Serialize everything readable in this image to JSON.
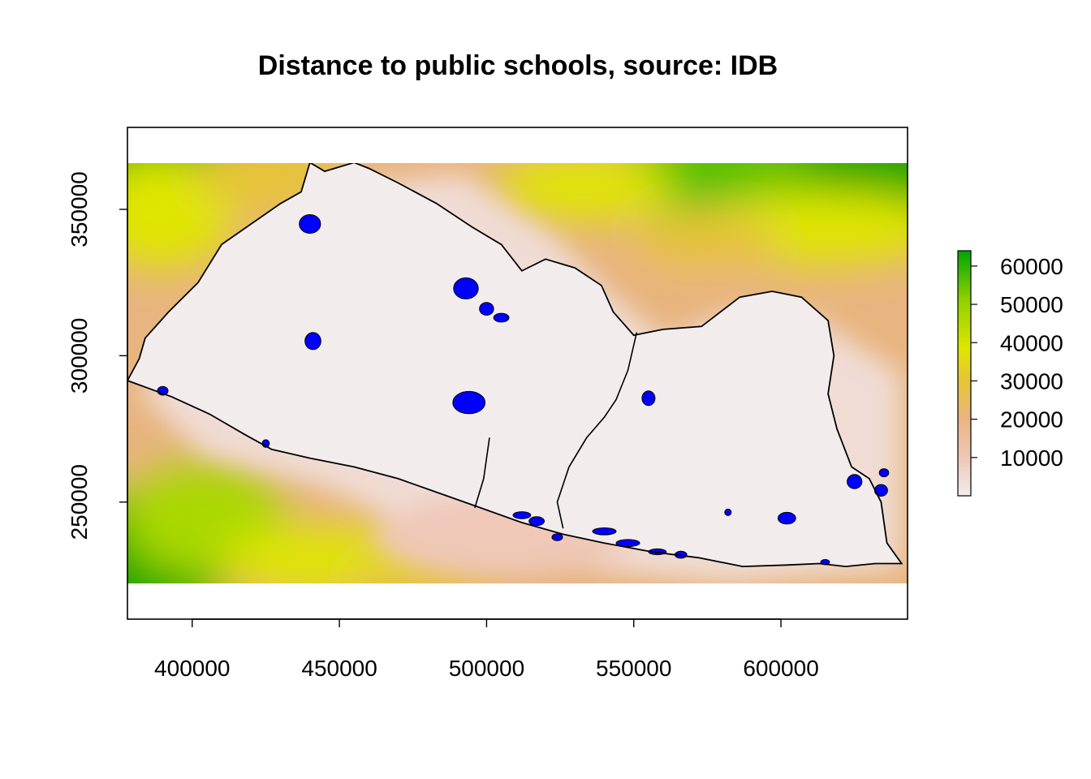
{
  "title": "Distance to public schools, source: IDB",
  "colors": {
    "scale": [
      "#f2ecec",
      "#f0dcd4",
      "#efc8b8",
      "#e8b47f",
      "#e6c436",
      "#dfe600",
      "#a9d800",
      "#50c000",
      "#00a600"
    ],
    "water": "#0000ff",
    "border": "#000000",
    "background": "#ffffff"
  },
  "chart_data": {
    "type": "heatmap",
    "title": "Distance to public schools, source: IDB",
    "xlabel": "",
    "ylabel": "",
    "xlim": [
      378000,
      643000
    ],
    "ylim": [
      210000,
      378000
    ],
    "raster_extent": {
      "x": [
        378000,
        643000
      ],
      "y": [
        226000,
        369000
      ]
    },
    "x_ticks": [
      400000,
      450000,
      500000,
      550000,
      600000
    ],
    "x_tick_labels": [
      "400000",
      "450000",
      "500000",
      "550000",
      "600000"
    ],
    "y_ticks": [
      250000,
      300000,
      350000
    ],
    "y_tick_labels": [
      "250000",
      "300000",
      "350000"
    ],
    "legend": {
      "position": "right",
      "min": 0,
      "max": 64000,
      "ticks": [
        10000,
        20000,
        30000,
        40000,
        50000,
        60000
      ],
      "tick_labels": [
        "10000",
        "20000",
        "30000",
        "40000",
        "50000",
        "60000"
      ]
    },
    "legend_position": "right",
    "grid": false,
    "country_outline": [
      [
        378000,
        291500
      ],
      [
        393000,
        286000
      ],
      [
        406000,
        280000
      ],
      [
        418000,
        273000
      ],
      [
        427000,
        268000
      ],
      [
        440000,
        265000
      ],
      [
        455000,
        262000
      ],
      [
        470000,
        258000
      ],
      [
        484000,
        253000
      ],
      [
        498000,
        248000
      ],
      [
        512000,
        243000
      ],
      [
        526000,
        239000
      ],
      [
        540000,
        236000
      ],
      [
        556000,
        233000
      ],
      [
        572000,
        231000
      ],
      [
        587000,
        228000
      ],
      [
        602000,
        228500
      ],
      [
        613000,
        229000
      ],
      [
        622000,
        228000
      ],
      [
        632000,
        229000
      ],
      [
        641000,
        229000
      ],
      [
        636000,
        236000
      ],
      [
        634000,
        250000
      ],
      [
        630000,
        258000
      ],
      [
        624000,
        262000
      ],
      [
        619000,
        275000
      ],
      [
        616000,
        287000
      ],
      [
        618000,
        300000
      ],
      [
        616000,
        312000
      ],
      [
        607000,
        320000
      ],
      [
        597000,
        322000
      ],
      [
        586000,
        320000
      ],
      [
        573000,
        310000
      ],
      [
        560000,
        309000
      ],
      [
        550000,
        307000
      ],
      [
        543000,
        315000
      ],
      [
        539000,
        324000
      ],
      [
        530000,
        330000
      ],
      [
        520000,
        333000
      ],
      [
        512000,
        329000
      ],
      [
        505000,
        338000
      ],
      [
        495000,
        344000
      ],
      [
        483000,
        352000
      ],
      [
        470000,
        359000
      ],
      [
        460000,
        364000
      ],
      [
        455000,
        366000
      ],
      [
        445000,
        363000
      ],
      [
        440000,
        366000
      ],
      [
        437000,
        356000
      ],
      [
        430000,
        352000
      ],
      [
        420000,
        345000
      ],
      [
        410000,
        338000
      ],
      [
        402000,
        325000
      ],
      [
        392000,
        315000
      ],
      [
        384000,
        306000
      ],
      [
        382000,
        299000
      ]
    ],
    "internal_boundaries": [
      [
        [
          551000,
          308000
        ],
        [
          548000,
          295000
        ],
        [
          544000,
          285000
        ],
        [
          540000,
          279000
        ],
        [
          534000,
          272000
        ],
        [
          528000,
          262000
        ],
        [
          524000,
          250000
        ],
        [
          526000,
          241000
        ]
      ],
      [
        [
          501000,
          272000
        ],
        [
          499000,
          258000
        ],
        [
          496000,
          248000
        ]
      ]
    ],
    "water_bodies": [
      {
        "cx": 440000,
        "cy": 345000,
        "rx": 3600,
        "ry": 3200
      },
      {
        "cx": 493000,
        "cy": 323000,
        "rx": 4200,
        "ry": 3600
      },
      {
        "cx": 500000,
        "cy": 316000,
        "rx": 2400,
        "ry": 2200
      },
      {
        "cx": 505000,
        "cy": 313000,
        "rx": 2600,
        "ry": 1500
      },
      {
        "cx": 441000,
        "cy": 305000,
        "rx": 2700,
        "ry": 2900
      },
      {
        "cx": 494000,
        "cy": 284000,
        "rx": 5500,
        "ry": 3800
      },
      {
        "cx": 555000,
        "cy": 285500,
        "rx": 2200,
        "ry": 2500
      },
      {
        "cx": 602000,
        "cy": 244500,
        "rx": 3000,
        "ry": 2000
      },
      {
        "cx": 582000,
        "cy": 246500,
        "rx": 1100,
        "ry": 1100
      },
      {
        "cx": 390000,
        "cy": 288000,
        "rx": 1800,
        "ry": 1500
      },
      {
        "cx": 425000,
        "cy": 270000,
        "rx": 1200,
        "ry": 1300
      },
      {
        "cx": 512000,
        "cy": 245500,
        "rx": 3000,
        "ry": 1200
      },
      {
        "cx": 517000,
        "cy": 243500,
        "rx": 2600,
        "ry": 1500
      },
      {
        "cx": 524000,
        "cy": 238000,
        "rx": 1800,
        "ry": 1200
      },
      {
        "cx": 540000,
        "cy": 240000,
        "rx": 4000,
        "ry": 1200
      },
      {
        "cx": 548000,
        "cy": 236000,
        "rx": 4000,
        "ry": 1200
      },
      {
        "cx": 558000,
        "cy": 233000,
        "rx": 3000,
        "ry": 1000
      },
      {
        "cx": 566000,
        "cy": 232000,
        "rx": 2000,
        "ry": 1200
      },
      {
        "cx": 615000,
        "cy": 229500,
        "rx": 1500,
        "ry": 900
      },
      {
        "cx": 625000,
        "cy": 257000,
        "rx": 2500,
        "ry": 2400
      },
      {
        "cx": 634000,
        "cy": 254000,
        "rx": 2200,
        "ry": 2000
      },
      {
        "cx": 635000,
        "cy": 260000,
        "rx": 1600,
        "ry": 1400
      }
    ]
  }
}
